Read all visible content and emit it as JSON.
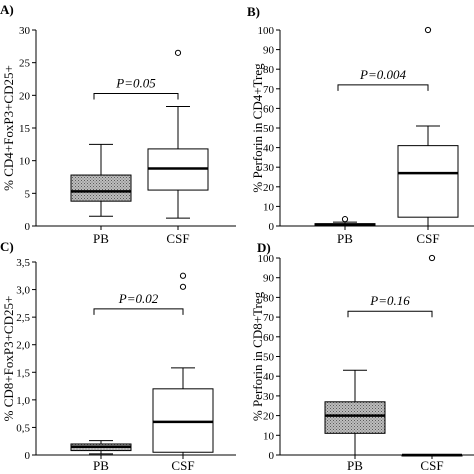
{
  "chart_data": [
    {
      "type": "box",
      "panel": "A)",
      "ylabel": "% CD4+FoxP3+CD25+",
      "categories": [
        "PB",
        "CSF"
      ],
      "ylim": [
        0,
        30
      ],
      "yticks": [
        "0",
        "5",
        "10",
        "15",
        "20",
        "25",
        "30"
      ],
      "pvalue": "P=0.05",
      "boxes": [
        {
          "category": "PB",
          "fill": "stippled",
          "whisker_low": 1.5,
          "q1": 3.8,
          "median": 5.3,
          "q3": 7.8,
          "whisker_high": 12.5,
          "outliers": []
        },
        {
          "category": "CSF",
          "fill": "white",
          "whisker_low": 1.2,
          "q1": 5.5,
          "median": 8.8,
          "q3": 11.8,
          "whisker_high": 18.3,
          "outliers": [
            26.5
          ]
        }
      ]
    },
    {
      "type": "box",
      "panel": "B)",
      "ylabel": "% Perforin in CD4+Treg",
      "categories": [
        "PB",
        "CSF"
      ],
      "ylim": [
        0,
        100
      ],
      "yticks": [
        "0",
        "10",
        "20",
        "30",
        "40",
        "50",
        "60",
        "70",
        "80",
        "90",
        "100"
      ],
      "pvalue": "P=0.004",
      "boxes": [
        {
          "category": "PB",
          "fill": "stippled",
          "whisker_low": 0,
          "q1": 0.2,
          "median": 0.7,
          "q3": 1.2,
          "whisker_high": 2,
          "outliers": [
            3.5
          ]
        },
        {
          "category": "CSF",
          "fill": "white",
          "whisker_low": 0,
          "q1": 4.5,
          "median": 27,
          "q3": 41,
          "whisker_high": 51,
          "outliers": [
            100
          ]
        }
      ]
    },
    {
      "type": "box",
      "panel": "C)",
      "ylabel": "% CD8+FoxP3+CD25+",
      "categories": [
        "PB",
        "CSF"
      ],
      "ylim": [
        0,
        3.5
      ],
      "yticks": [
        "0",
        "0,5",
        "1,0",
        "1,5",
        "2,0",
        "2,5",
        "3,0",
        "3,5"
      ],
      "pvalue": "P=0.02",
      "boxes": [
        {
          "category": "PB",
          "fill": "stippled",
          "whisker_low": 0.02,
          "q1": 0.08,
          "median": 0.15,
          "q3": 0.2,
          "whisker_high": 0.26,
          "outliers": []
        },
        {
          "category": "CSF",
          "fill": "white",
          "whisker_low": 0,
          "q1": 0.05,
          "median": 0.6,
          "q3": 1.2,
          "whisker_high": 1.58,
          "outliers": [
            3.05,
            3.25
          ]
        }
      ]
    },
    {
      "type": "box",
      "panel": "D)",
      "ylabel": "% Perforin in CD8+Treg",
      "categories": [
        "PB",
        "CSF"
      ],
      "ylim": [
        0,
        100
      ],
      "yticks": [
        "0",
        "10",
        "20",
        "30",
        "40",
        "50",
        "60",
        "70",
        "80",
        "90",
        "100"
      ],
      "pvalue": "P=0.16",
      "boxes": [
        {
          "category": "PB",
          "fill": "stippled",
          "whisker_low": 0,
          "q1": 11,
          "median": 20,
          "q3": 27,
          "whisker_high": 43,
          "outliers": []
        },
        {
          "category": "CSF",
          "fill": "white",
          "whisker_low": 0,
          "q1": 0,
          "median": 0,
          "q3": 0,
          "whisker_high": 0,
          "outliers": [
            100
          ]
        }
      ]
    }
  ]
}
